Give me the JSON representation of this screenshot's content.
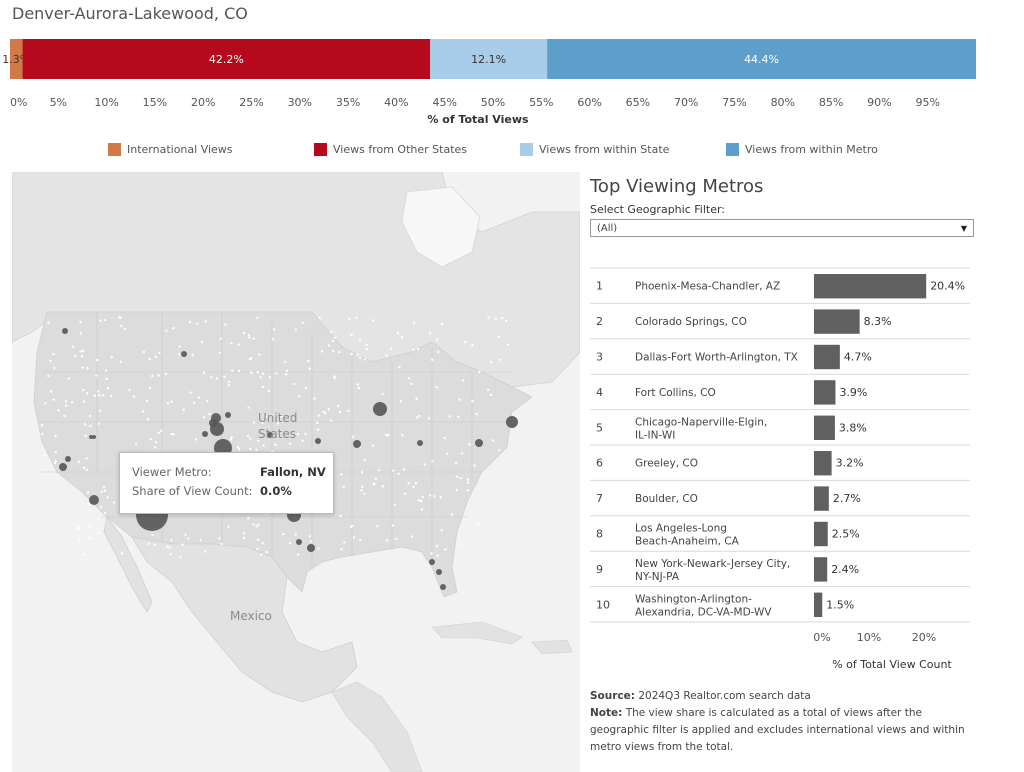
{
  "page": {
    "title": "Denver-Aurora-Lakewood, CO"
  },
  "chart_data": [
    {
      "type": "bar",
      "orientation": "horizontal-stacked",
      "xlabel": "% of Total Views",
      "xlim": [
        0,
        100
      ],
      "x_ticks": [
        "0%",
        "5%",
        "10%",
        "15%",
        "20%",
        "25%",
        "30%",
        "35%",
        "40%",
        "45%",
        "50%",
        "55%",
        "60%",
        "65%",
        "70%",
        "75%",
        "80%",
        "85%",
        "90%",
        "95%"
      ],
      "series": [
        {
          "name": "International Views",
          "value": 1.3,
          "label": "1.3%",
          "color": "#d07a4a"
        },
        {
          "name": "Views from Other States",
          "value": 42.2,
          "label": "42.2%",
          "color": "#b5091e"
        },
        {
          "name": "Views from within State",
          "value": 12.1,
          "label": "12.1%",
          "color": "#a9cce8"
        },
        {
          "name": "Views from within Metro",
          "value": 44.4,
          "label": "44.4%",
          "color": "#5e9ecb"
        }
      ],
      "legend_position": "bottom"
    },
    {
      "type": "bar",
      "orientation": "horizontal",
      "title": "Top Viewing Metros",
      "xlabel": "% of Total View Count",
      "xlim": [
        0,
        28
      ],
      "x_ticks": [
        "0%",
        "10%",
        "20%"
      ],
      "bar_color": "#606060",
      "rows": [
        {
          "rank": "1",
          "metro": [
            "Phoenix-Mesa-Chandler, AZ"
          ],
          "value": 20.4,
          "label": "20.4%"
        },
        {
          "rank": "2",
          "metro": [
            "Colorado Springs, CO"
          ],
          "value": 8.3,
          "label": "8.3%"
        },
        {
          "rank": "3",
          "metro": [
            "Dallas-Fort Worth-Arlington, TX"
          ],
          "value": 4.7,
          "label": "4.7%"
        },
        {
          "rank": "4",
          "metro": [
            "Fort Collins, CO"
          ],
          "value": 3.9,
          "label": "3.9%"
        },
        {
          "rank": "5",
          "metro": [
            "Chicago-Naperville-Elgin,",
            "IL-IN-WI"
          ],
          "value": 3.8,
          "label": "3.8%"
        },
        {
          "rank": "6",
          "metro": [
            "Greeley, CO"
          ],
          "value": 3.2,
          "label": "3.2%"
        },
        {
          "rank": "7",
          "metro": [
            "Boulder, CO"
          ],
          "value": 2.7,
          "label": "2.7%"
        },
        {
          "rank": "8",
          "metro": [
            "Los Angeles-Long",
            "Beach-Anaheim, CA"
          ],
          "value": 2.5,
          "label": "2.5%"
        },
        {
          "rank": "9",
          "metro": [
            "New York-Newark-Jersey City,",
            "NY-NJ-PA"
          ],
          "value": 2.4,
          "label": "2.4%"
        },
        {
          "rank": "10",
          "metro": [
            "Washington-Arlington-",
            "Alexandria, DC-VA-MD-WV"
          ],
          "value": 1.5,
          "label": "1.5%"
        }
      ]
    }
  ],
  "map": {
    "labels": {
      "country_us_line1": "United",
      "country_us_line2": "States",
      "country_mx": "Mexico"
    },
    "tooltip": {
      "metro_label": "Viewer Metro:",
      "metro_value": "Fallon, NV",
      "share_label": "Share of View Count:",
      "share_value": "0.0%"
    }
  },
  "panel": {
    "filter_label": "Select Geographic Filter:",
    "filter_value": "(All)",
    "filter_arrow": "▼"
  },
  "footer": {
    "source_label": "Source:",
    "source_text": "2024Q3 Realtor.com search data",
    "note_label": "Note:",
    "note_text": "The view share is calculated as a total of views after the geographic filter is applied and excludes international views and within metro views from the total."
  },
  "colors": {
    "map_land": "#e6e6e6",
    "map_water": "#ffffff",
    "bubble": "#555555"
  }
}
